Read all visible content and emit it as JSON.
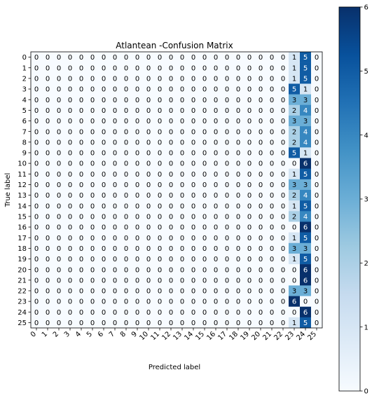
{
  "chart_data": {
    "type": "heatmap",
    "title": "Atlantean -Confusion Matrix",
    "xlabel": "Predicted label",
    "ylabel": "True label",
    "x_tick_labels": [
      "0",
      "1",
      "2",
      "3",
      "4",
      "5",
      "6",
      "7",
      "8",
      "9",
      "10",
      "11",
      "12",
      "13",
      "14",
      "15",
      "16",
      "17",
      "18",
      "19",
      "20",
      "21",
      "22",
      "23",
      "24",
      "25"
    ],
    "y_tick_labels": [
      "0",
      "1",
      "2",
      "3",
      "4",
      "5",
      "6",
      "7",
      "8",
      "9",
      "10",
      "11",
      "12",
      "13",
      "14",
      "15",
      "16",
      "17",
      "18",
      "19",
      "20",
      "21",
      "22",
      "23",
      "24",
      "25"
    ],
    "colormap": "Blues",
    "colorbar": {
      "min": 0,
      "max": 6,
      "ticks": [
        "0",
        "1",
        "2",
        "3",
        "4",
        "5",
        "6"
      ]
    },
    "values": [
      [
        0,
        0,
        0,
        0,
        0,
        0,
        0,
        0,
        0,
        0,
        0,
        0,
        0,
        0,
        0,
        0,
        0,
        0,
        0,
        0,
        0,
        0,
        0,
        1,
        5,
        0
      ],
      [
        0,
        0,
        0,
        0,
        0,
        0,
        0,
        0,
        0,
        0,
        0,
        0,
        0,
        0,
        0,
        0,
        0,
        0,
        0,
        0,
        0,
        0,
        0,
        1,
        5,
        0
      ],
      [
        0,
        0,
        0,
        0,
        0,
        0,
        0,
        0,
        0,
        0,
        0,
        0,
        0,
        0,
        0,
        0,
        0,
        0,
        0,
        0,
        0,
        0,
        0,
        1,
        5,
        0
      ],
      [
        0,
        0,
        0,
        0,
        0,
        0,
        0,
        0,
        0,
        0,
        0,
        0,
        0,
        0,
        0,
        0,
        0,
        0,
        0,
        0,
        0,
        0,
        0,
        5,
        1,
        0
      ],
      [
        0,
        0,
        0,
        0,
        0,
        0,
        0,
        0,
        0,
        0,
        0,
        0,
        0,
        0,
        0,
        0,
        0,
        0,
        0,
        0,
        0,
        0,
        0,
        3,
        3,
        0
      ],
      [
        0,
        0,
        0,
        0,
        0,
        0,
        0,
        0,
        0,
        0,
        0,
        0,
        0,
        0,
        0,
        0,
        0,
        0,
        0,
        0,
        0,
        0,
        0,
        2,
        4,
        0
      ],
      [
        0,
        0,
        0,
        0,
        0,
        0,
        0,
        0,
        0,
        0,
        0,
        0,
        0,
        0,
        0,
        0,
        0,
        0,
        0,
        0,
        0,
        0,
        0,
        3,
        3,
        0
      ],
      [
        0,
        0,
        0,
        0,
        0,
        0,
        0,
        0,
        0,
        0,
        0,
        0,
        0,
        0,
        0,
        0,
        0,
        0,
        0,
        0,
        0,
        0,
        0,
        2,
        4,
        0
      ],
      [
        0,
        0,
        0,
        0,
        0,
        0,
        0,
        0,
        0,
        0,
        0,
        0,
        0,
        0,
        0,
        0,
        0,
        0,
        0,
        0,
        0,
        0,
        0,
        2,
        4,
        0
      ],
      [
        0,
        0,
        0,
        0,
        0,
        0,
        0,
        0,
        0,
        0,
        0,
        0,
        0,
        0,
        0,
        0,
        0,
        0,
        0,
        0,
        0,
        0,
        0,
        5,
        1,
        0
      ],
      [
        0,
        0,
        0,
        0,
        0,
        0,
        0,
        0,
        0,
        0,
        0,
        0,
        0,
        0,
        0,
        0,
        0,
        0,
        0,
        0,
        0,
        0,
        0,
        0,
        6,
        0
      ],
      [
        0,
        0,
        0,
        0,
        0,
        0,
        0,
        0,
        0,
        0,
        0,
        0,
        0,
        0,
        0,
        0,
        0,
        0,
        0,
        0,
        0,
        0,
        0,
        1,
        5,
        0
      ],
      [
        0,
        0,
        0,
        0,
        0,
        0,
        0,
        0,
        0,
        0,
        0,
        0,
        0,
        0,
        0,
        0,
        0,
        0,
        0,
        0,
        0,
        0,
        0,
        3,
        3,
        0
      ],
      [
        0,
        0,
        0,
        0,
        0,
        0,
        0,
        0,
        0,
        0,
        0,
        0,
        0,
        0,
        0,
        0,
        0,
        0,
        0,
        0,
        0,
        0,
        0,
        2,
        4,
        0
      ],
      [
        0,
        0,
        0,
        0,
        0,
        0,
        0,
        0,
        0,
        0,
        0,
        0,
        0,
        0,
        0,
        0,
        0,
        0,
        0,
        0,
        0,
        0,
        0,
        1,
        5,
        0
      ],
      [
        0,
        0,
        0,
        0,
        0,
        0,
        0,
        0,
        0,
        0,
        0,
        0,
        0,
        0,
        0,
        0,
        0,
        0,
        0,
        0,
        0,
        0,
        0,
        2,
        4,
        0
      ],
      [
        0,
        0,
        0,
        0,
        0,
        0,
        0,
        0,
        0,
        0,
        0,
        0,
        0,
        0,
        0,
        0,
        0,
        0,
        0,
        0,
        0,
        0,
        0,
        0,
        6,
        0
      ],
      [
        0,
        0,
        0,
        0,
        0,
        0,
        0,
        0,
        0,
        0,
        0,
        0,
        0,
        0,
        0,
        0,
        0,
        0,
        0,
        0,
        0,
        0,
        0,
        1,
        5,
        0
      ],
      [
        0,
        0,
        0,
        0,
        0,
        0,
        0,
        0,
        0,
        0,
        0,
        0,
        0,
        0,
        0,
        0,
        0,
        0,
        0,
        0,
        0,
        0,
        0,
        3,
        3,
        0
      ],
      [
        0,
        0,
        0,
        0,
        0,
        0,
        0,
        0,
        0,
        0,
        0,
        0,
        0,
        0,
        0,
        0,
        0,
        0,
        0,
        0,
        0,
        0,
        0,
        1,
        5,
        0
      ],
      [
        0,
        0,
        0,
        0,
        0,
        0,
        0,
        0,
        0,
        0,
        0,
        0,
        0,
        0,
        0,
        0,
        0,
        0,
        0,
        0,
        0,
        0,
        0,
        0,
        6,
        0
      ],
      [
        0,
        0,
        0,
        0,
        0,
        0,
        0,
        0,
        0,
        0,
        0,
        0,
        0,
        0,
        0,
        0,
        0,
        0,
        0,
        0,
        0,
        0,
        0,
        0,
        6,
        0
      ],
      [
        0,
        0,
        0,
        0,
        0,
        0,
        0,
        0,
        0,
        0,
        0,
        0,
        0,
        0,
        0,
        0,
        0,
        0,
        0,
        0,
        0,
        0,
        0,
        3,
        3,
        0
      ],
      [
        0,
        0,
        0,
        0,
        0,
        0,
        0,
        0,
        0,
        0,
        0,
        0,
        0,
        0,
        0,
        0,
        0,
        0,
        0,
        0,
        0,
        0,
        0,
        6,
        0,
        0
      ],
      [
        0,
        0,
        0,
        0,
        0,
        0,
        0,
        0,
        0,
        0,
        0,
        0,
        0,
        0,
        0,
        0,
        0,
        0,
        0,
        0,
        0,
        0,
        0,
        0,
        6,
        0
      ],
      [
        0,
        0,
        0,
        0,
        0,
        0,
        0,
        0,
        0,
        0,
        0,
        0,
        0,
        0,
        0,
        0,
        0,
        0,
        0,
        0,
        0,
        0,
        0,
        1,
        5,
        0
      ]
    ]
  }
}
